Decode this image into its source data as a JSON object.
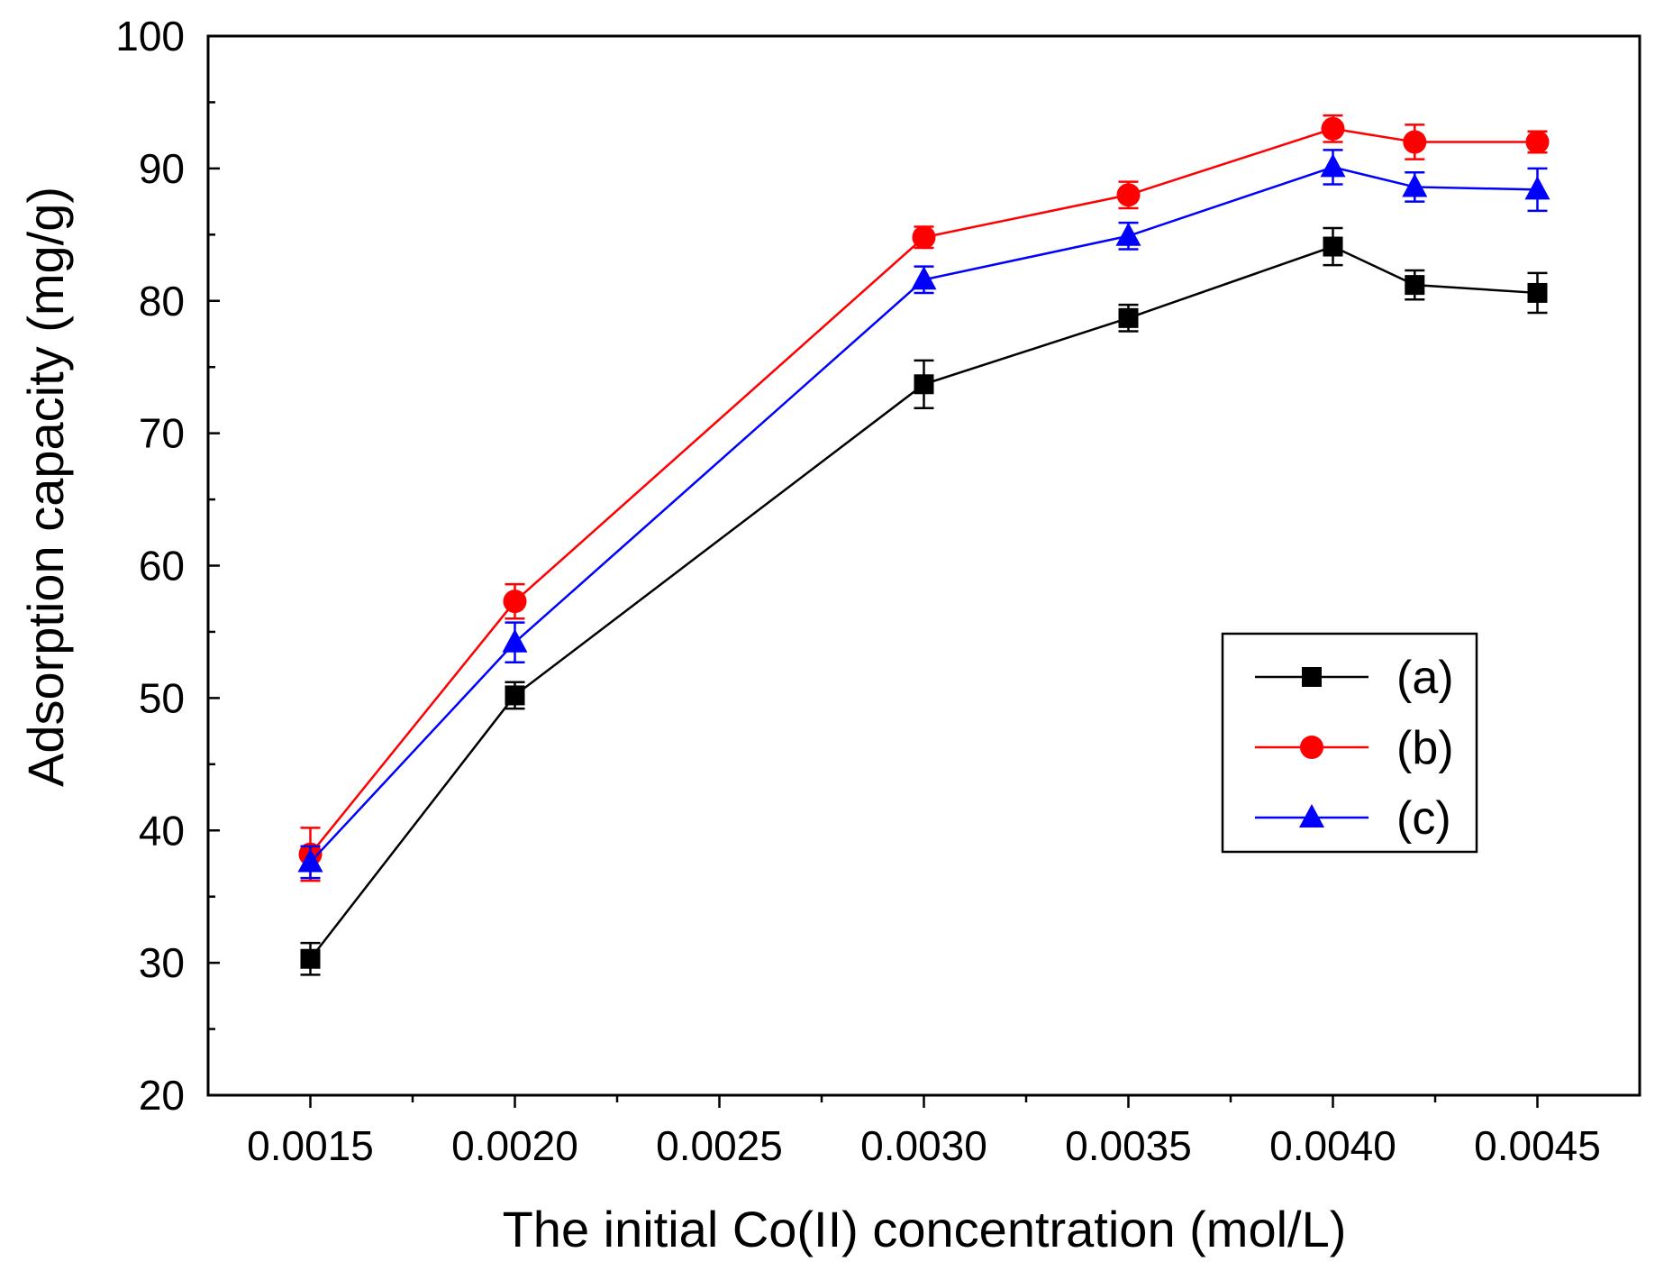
{
  "chart_data": {
    "type": "line",
    "title": "",
    "xlabel": "The initial Co(II) concentration (mol/L)",
    "ylabel": "Adsorption capacity (mg/g)",
    "xlim": [
      0.00125,
      0.00475
    ],
    "ylim": [
      20,
      100
    ],
    "x_ticks": [
      0.0015,
      0.002,
      0.0025,
      0.003,
      0.0035,
      0.004,
      0.0045
    ],
    "x_tick_labels": [
      "0.0015",
      "0.0020",
      "0.0025",
      "0.0030",
      "0.0035",
      "0.0040",
      "0.0045"
    ],
    "x_minor_ticks": [
      0.00175,
      0.00225,
      0.00275,
      0.00325,
      0.00375,
      0.00425
    ],
    "y_ticks": [
      20,
      30,
      40,
      50,
      60,
      70,
      80,
      90,
      100
    ],
    "y_tick_labels": [
      "20",
      "30",
      "40",
      "50",
      "60",
      "70",
      "80",
      "90",
      "100"
    ],
    "y_minor_ticks": [
      25,
      35,
      45,
      55,
      65,
      75,
      85,
      95
    ],
    "grid": false,
    "legend_position": "center-right",
    "series": [
      {
        "name": "(a)",
        "color": "#000000",
        "marker": "square",
        "x": [
          0.0015,
          0.002,
          0.003,
          0.0035,
          0.004,
          0.0042,
          0.0045
        ],
        "values": [
          30.3,
          50.2,
          73.7,
          78.7,
          84.1,
          81.2,
          80.6
        ],
        "errors": [
          1.2,
          1.0,
          1.8,
          1.0,
          1.4,
          1.1,
          1.5
        ]
      },
      {
        "name": "(b)",
        "color": "#ff0000",
        "marker": "circle",
        "x": [
          0.0015,
          0.002,
          0.003,
          0.0035,
          0.004,
          0.0042,
          0.0045
        ],
        "values": [
          38.2,
          57.3,
          84.8,
          88.0,
          93.0,
          92.0,
          92.0
        ],
        "errors": [
          2.0,
          1.3,
          0.8,
          1.0,
          1.0,
          1.3,
          0.8
        ]
      },
      {
        "name": "(c)",
        "color": "#0000ff",
        "marker": "triangle",
        "x": [
          0.0015,
          0.002,
          0.003,
          0.0035,
          0.004,
          0.0042,
          0.0045
        ],
        "values": [
          37.6,
          54.2,
          81.6,
          84.9,
          90.1,
          88.6,
          88.4
        ],
        "errors": [
          1.2,
          1.5,
          1.0,
          1.0,
          1.3,
          1.1,
          1.6
        ]
      }
    ]
  }
}
